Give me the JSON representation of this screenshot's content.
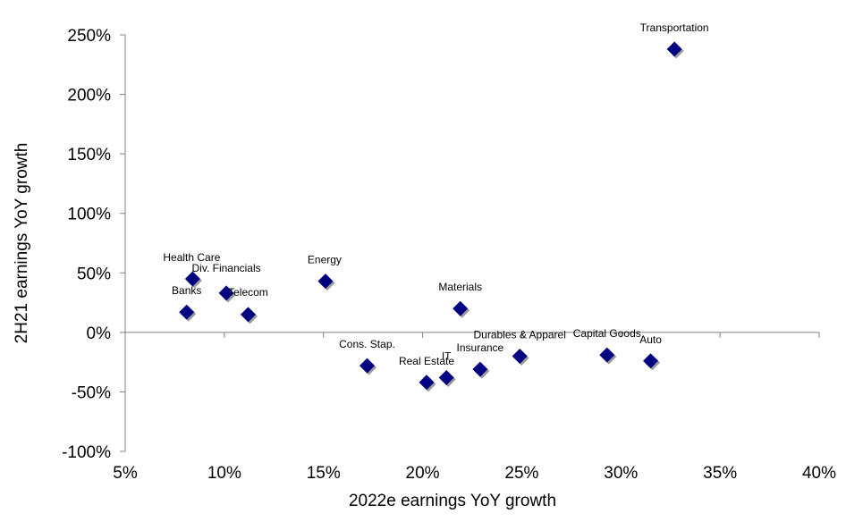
{
  "chart_data": {
    "type": "scatter",
    "xlabel": "2022e earnings YoY growth",
    "ylabel": "2H21 earnings YoY growth",
    "xlim": [
      5,
      40
    ],
    "ylim": [
      -100,
      250
    ],
    "x_ticks": [
      5,
      10,
      15,
      20,
      25,
      30,
      35,
      40
    ],
    "y_ticks": [
      250,
      200,
      150,
      100,
      50,
      0,
      -50,
      -100
    ],
    "x_tick_labels": [
      "5%",
      "10%",
      "15%",
      "20%",
      "25%",
      "30%",
      "35%",
      "40%"
    ],
    "y_tick_labels": [
      "250%",
      "200%",
      "150%",
      "100%",
      "50%",
      "0%",
      "-50%",
      "-100%"
    ],
    "negative_tick_color": "#ff0000",
    "marker_color": "#000080",
    "marker": "diamond",
    "grid": false,
    "points": [
      {
        "label": "Transportation",
        "x": 32.7,
        "y": 238
      },
      {
        "label": "Health Care",
        "x": 8.4,
        "y": 45
      },
      {
        "label": "Div. Financials",
        "x": 10.1,
        "y": 33
      },
      {
        "label": "Banks",
        "x": 8.1,
        "y": 17
      },
      {
        "label": "Telecom",
        "x": 11.2,
        "y": 15
      },
      {
        "label": "Energy",
        "x": 15.1,
        "y": 43
      },
      {
        "label": "Materials",
        "x": 21.9,
        "y": 20
      },
      {
        "label": "Cons. Stap.",
        "x": 17.2,
        "y": -28
      },
      {
        "label": "Real Estate",
        "x": 20.2,
        "y": -42
      },
      {
        "label": "IT",
        "x": 21.2,
        "y": -38
      },
      {
        "label": "Insurance",
        "x": 22.9,
        "y": -31
      },
      {
        "label": "Durables & Apparel",
        "x": 24.9,
        "y": -20
      },
      {
        "label": "Capital Goods",
        "x": 29.3,
        "y": -19
      },
      {
        "label": "Auto",
        "x": 31.5,
        "y": -24
      }
    ]
  }
}
